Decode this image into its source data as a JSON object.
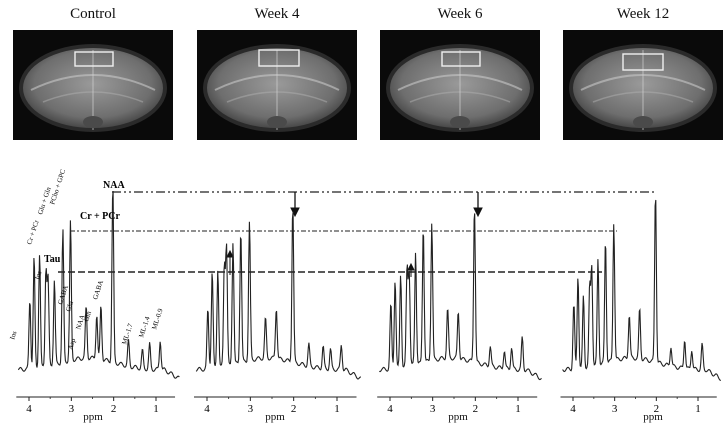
{
  "panels": [
    {
      "title": "Control"
    },
    {
      "title": "Week 4"
    },
    {
      "title": "Week 6"
    },
    {
      "title": "Week 12"
    }
  ],
  "axis": {
    "unit": "ppm",
    "ticks": [
      "4",
      "3",
      "2",
      "1"
    ]
  },
  "annotations": {
    "naa": "NAA",
    "cr_pcr": "Cr + PCr",
    "tau": "Tau",
    "control_peak_labels": [
      "Ins",
      "Ins",
      "Cr + PCr",
      "Glu + Gln",
      "PCho + GPC",
      "GABA",
      "Glu",
      "Asp",
      "NAA",
      "Gln",
      "GABA",
      "ML-1.7",
      "ML-1.4",
      "ML-0.9"
    ]
  },
  "colors": {
    "background": "#ffffff",
    "spectrum_line": "#222222",
    "mri_background": "#0a0a0a",
    "roi_box": "#f0f0f0"
  }
}
